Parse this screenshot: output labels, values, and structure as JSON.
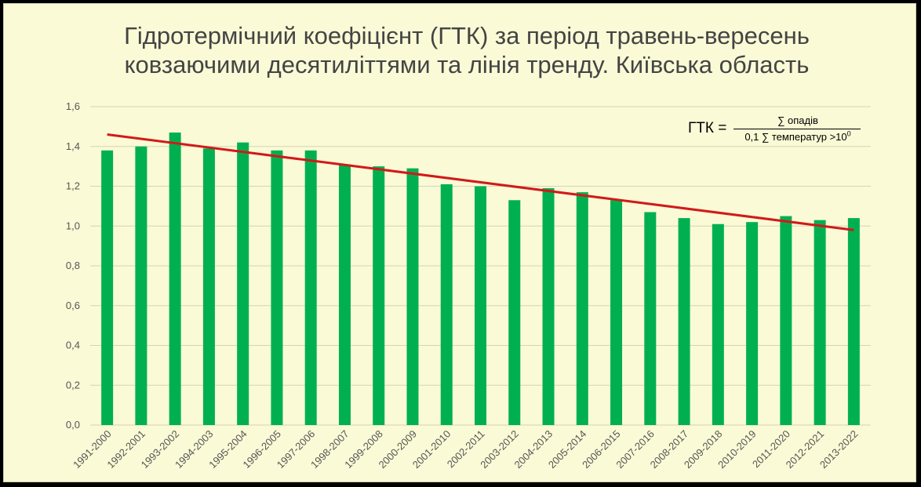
{
  "chart_data": {
    "type": "bar",
    "title_lines": [
      "Гідротермічний коефіцієнт (ГТК) за період травень-вересень",
      "ковзаючими десятиліттями та лінія тренду. Київська область"
    ],
    "categories": [
      "1991-2000",
      "1992-2001",
      "1993-2002",
      "1994-2003",
      "1995-2004",
      "1996-2005",
      "1997-2006",
      "1998-2007",
      "1999-2008",
      "2000-2009",
      "2001-2010",
      "2002-2011",
      "2003-2012",
      "2004-2013",
      "2005-2014",
      "2006-2015",
      "2007-2016",
      "2008-2017",
      "2009-2018",
      "2010-2019",
      "2011-2020",
      "2012-2021",
      "2013-2022"
    ],
    "values": [
      1.38,
      1.4,
      1.47,
      1.39,
      1.42,
      1.38,
      1.38,
      1.31,
      1.3,
      1.29,
      1.21,
      1.2,
      1.13,
      1.19,
      1.17,
      1.13,
      1.07,
      1.04,
      1.01,
      1.02,
      1.05,
      1.03,
      1.04
    ],
    "trend": {
      "start": 1.46,
      "end": 0.98,
      "color": "#d11a1a"
    },
    "ylim": [
      0,
      1.6
    ],
    "yticks": [
      "0,0",
      "0,2",
      "0,4",
      "0,6",
      "0,8",
      "1,0",
      "1,2",
      "1,4",
      "1,6"
    ],
    "grid": true,
    "bar_color": "#00b050",
    "xlabel": "",
    "ylabel": ""
  },
  "formula": {
    "lhs": "ГТК =",
    "numerator": "∑ опадів",
    "denominator": "0,1 ∑ температур >10",
    "denominator_sup": "0"
  }
}
